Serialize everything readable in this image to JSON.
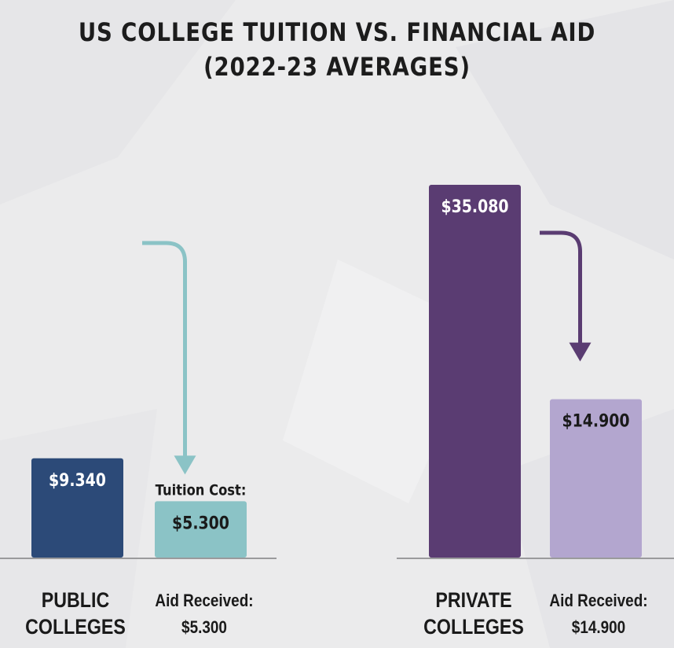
{
  "title_line1": "US COLLEGE TUITION VS. FINANCIAL AID",
  "title_line2": "(2022-23 AVERAGES)",
  "chart_data": {
    "type": "bar",
    "title": "US COLLEGE TUITION VS. FINANCIAL AID (2022-23 AVERAGES)",
    "ylim": [
      0,
      37000
    ],
    "grid": false,
    "groups": [
      {
        "category_line1": "PUBLIC",
        "category_line2": "COLLEGES",
        "aid_caption": "Aid Received:",
        "aid_value": "$5.300",
        "bars": [
          {
            "value": 9340,
            "label": "$9.340",
            "color": "#2c4a78",
            "label_color": "#ffffff"
          },
          {
            "value": 5300,
            "label": "$5.300",
            "caption": "Tuition Cost:",
            "color": "#8bc3c6",
            "label_color": "#1a1a1a"
          }
        ],
        "arrow_color": "#8bc3c6"
      },
      {
        "category_line1": "PRIVATE",
        "category_line2": "COLLEGES",
        "aid_caption": "Aid Received:",
        "aid_value": "$14.900",
        "bars": [
          {
            "value": 35080,
            "label": "$35.080",
            "color": "#5a3c72",
            "label_color": "#ffffff"
          },
          {
            "value": 14900,
            "label": "$14.900",
            "color": "#b3a6cf",
            "label_color": "#1a1a1a"
          }
        ],
        "arrow_color": "#5a3c72"
      }
    ]
  }
}
